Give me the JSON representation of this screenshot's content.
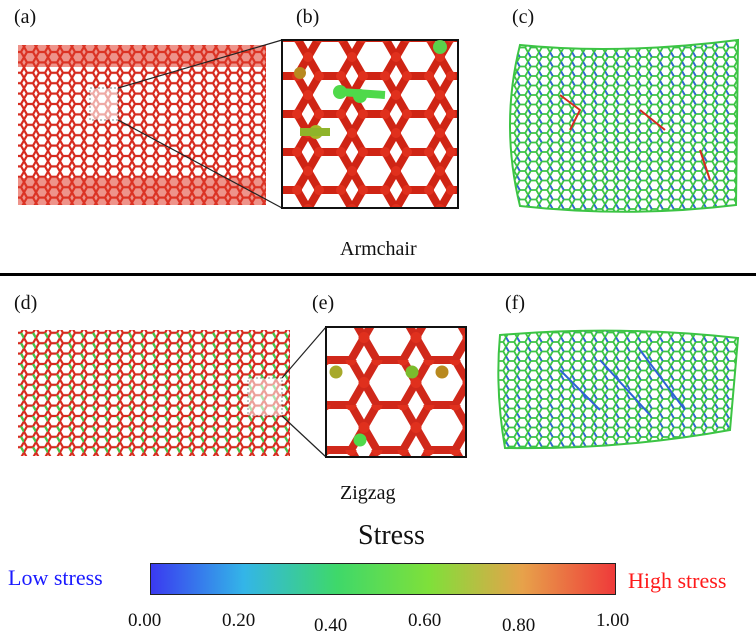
{
  "panels": {
    "a": "(a)",
    "b": "(b)",
    "c": "(c)",
    "d": "(d)",
    "e": "(e)",
    "f": "(f)"
  },
  "captions": {
    "top": "Armchair",
    "bottom": "Zigzag"
  },
  "legend": {
    "title": "Stress",
    "low": "Low stress",
    "high": "High stress",
    "ticks": [
      "0.00",
      "0.20",
      "0.40",
      "0.60",
      "0.80",
      "1.00"
    ],
    "gradient": [
      "#3a3af0",
      "#33b5e8",
      "#3ed86a",
      "#7fe03a",
      "#e7a24a",
      "#ef3a3a"
    ],
    "low_color": "#1a1aff",
    "high_color": "#ff1a1a"
  }
}
